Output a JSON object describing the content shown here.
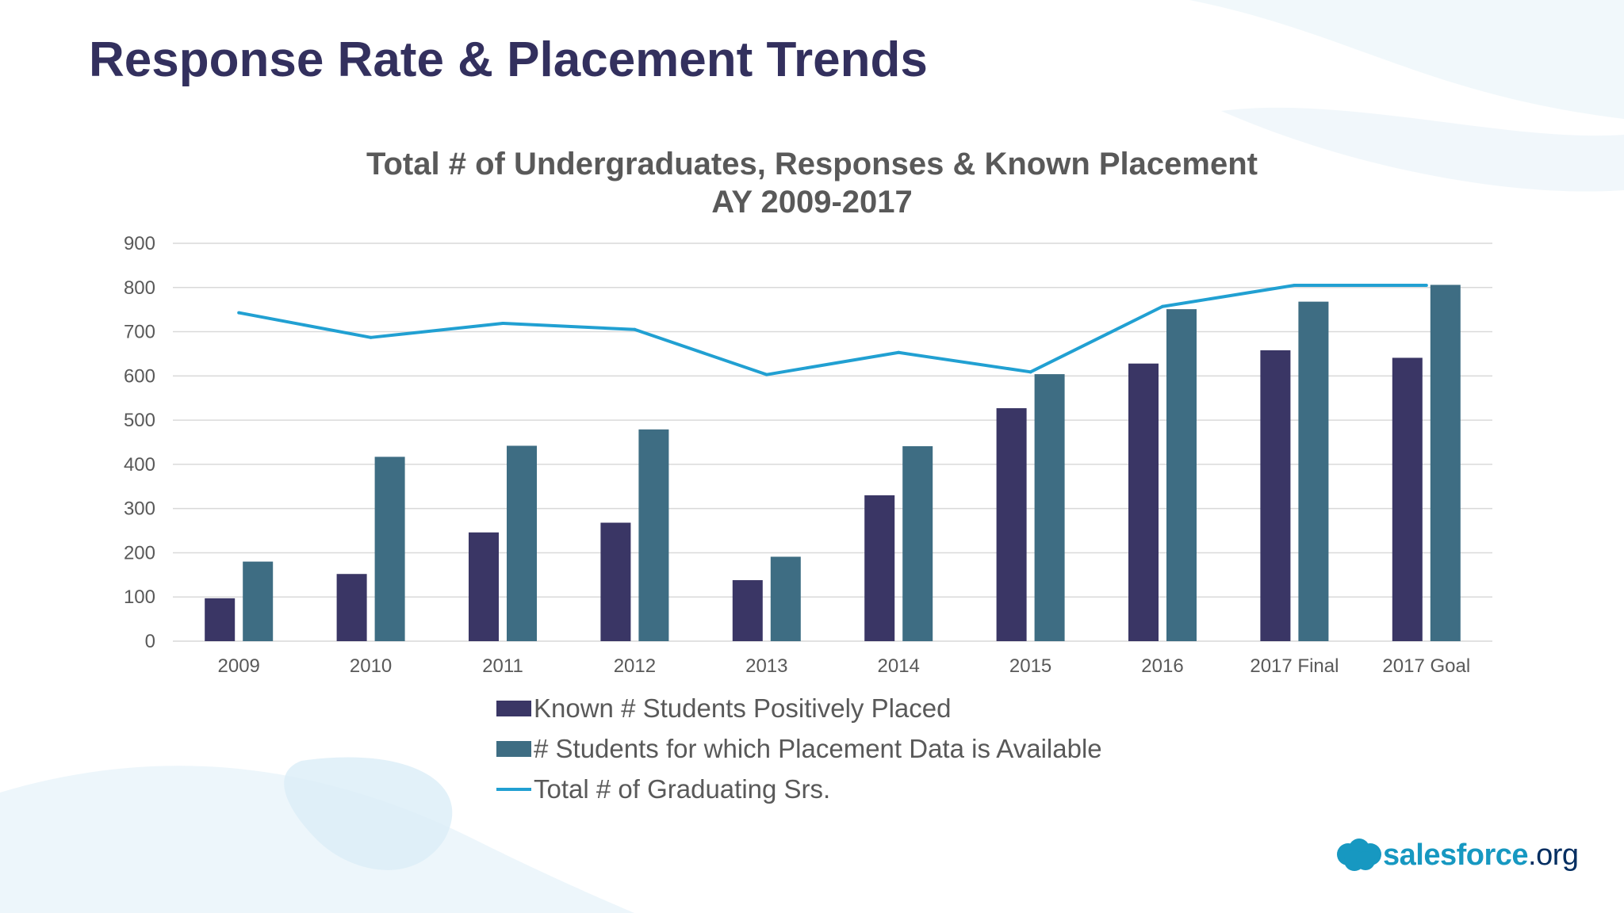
{
  "slide": {
    "title": "Response Rate & Placement Trends"
  },
  "logo": {
    "brand": "salesforce",
    "suffix": ".org",
    "icon": "cloud-icon",
    "cloud_color": "#1798c1",
    "suffix_color": "#032e61"
  },
  "colors": {
    "title": "#33305e",
    "series_placed": "#3a3665",
    "series_available": "#3e6d83",
    "series_total": "#21a0d2",
    "text": "#595959",
    "grid": "#d9d9d9"
  },
  "chart_data": {
    "type": "bar",
    "title": "Total # of Undergraduates, Responses & Known Placement",
    "subtitle": "AY 2009-2017",
    "categories": [
      "2009",
      "2010",
      "2011",
      "2012",
      "2013",
      "2014",
      "2015",
      "2016",
      "2017 Final",
      "2017 Goal"
    ],
    "series": [
      {
        "name": "Known # Students Positively Placed",
        "type": "bar",
        "values": [
          97,
          152,
          246,
          268,
          138,
          330,
          527,
          628,
          658,
          641
        ]
      },
      {
        "name": "# Students for which Placement Data is Available",
        "type": "bar",
        "values": [
          180,
          417,
          442,
          479,
          191,
          441,
          604,
          751,
          768,
          806
        ]
      },
      {
        "name": "Total # of Graduating Srs.",
        "type": "line",
        "values": [
          743,
          687,
          719,
          705,
          603,
          653,
          609,
          757,
          805,
          805
        ]
      }
    ],
    "ylim": [
      0,
      900
    ],
    "yticks": [
      0,
      100,
      200,
      300,
      400,
      500,
      600,
      700,
      800,
      900
    ],
    "grid": true,
    "legend": "bottom",
    "xlabel": "",
    "ylabel": ""
  }
}
